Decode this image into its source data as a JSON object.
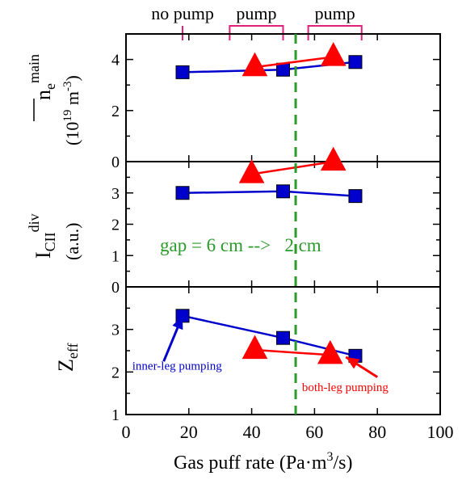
{
  "chart_data": {
    "type": "scatter",
    "xlabel": "Gas puff rate (Pa·m3/s)",
    "xlabel_main": "Gas puff rate (Pa·m",
    "xlabel_sup": "3",
    "xlabel_end": "/s)",
    "xlim": [
      0,
      100
    ],
    "xticks": [
      0,
      20,
      40,
      60,
      80,
      100
    ],
    "xtick_labels": [
      "0",
      "20",
      "40",
      "60",
      "80",
      "100"
    ],
    "gap_line_x": 54,
    "gap_annotation": "gap = 6 cm -->   2 cm",
    "pump_markers": [
      {
        "label": "no pump",
        "x_start": 18,
        "x_end": 18
      },
      {
        "label": "pump",
        "x_start": 33,
        "x_end": 50
      },
      {
        "label": "pump",
        "x_start": 58,
        "x_end": 75
      }
    ],
    "panels": [
      {
        "id": "ne",
        "ylabel_line1": "n",
        "ylabel_sub": "e",
        "ylabel_sup": "main",
        "ylabel_line2_start": "(10",
        "ylabel_line2_sup1": "19",
        "ylabel_line2_mid": " m",
        "ylabel_line2_sup2": "-3",
        "ylabel_line2_end": ")",
        "ylim": [
          0,
          5
        ],
        "yticks": [
          0,
          2,
          4
        ],
        "ytick_labels": [
          "0",
          "2",
          "4"
        ],
        "series": [
          {
            "marker": "square",
            "color": "#0000cc",
            "x": [
              18,
              50,
              73
            ],
            "y": [
              3.5,
              3.6,
              3.9
            ]
          },
          {
            "marker": "triangle",
            "color": "#ff0000",
            "x": [
              41,
              66
            ],
            "y": [
              3.7,
              4.1
            ]
          }
        ]
      },
      {
        "id": "cii",
        "ylabel_main": "I",
        "ylabel_sub": "CII",
        "ylabel_sup": "div",
        "ylabel_line2": "(a.u.)",
        "ylim": [
          0,
          4
        ],
        "yticks": [
          0,
          1,
          2,
          3
        ],
        "ytick_labels": [
          "0",
          "1",
          "2",
          "3"
        ],
        "series": [
          {
            "marker": "square",
            "color": "#0000cc",
            "x": [
              18,
              50,
              73
            ],
            "y": [
              3.0,
              3.05,
              2.9
            ]
          },
          {
            "marker": "triangle",
            "color": "#ff0000",
            "x": [
              40,
              66
            ],
            "y": [
              3.6,
              4.0
            ]
          }
        ]
      },
      {
        "id": "zeff",
        "ylabel_main": "Z",
        "ylabel_sub": "eff",
        "ylim": [
          1,
          4
        ],
        "yticks": [
          1,
          2,
          3
        ],
        "ytick_labels": [
          "1",
          "2",
          "3"
        ],
        "series": [
          {
            "marker": "square",
            "color": "#0000cc",
            "x": [
              18,
              50,
              73
            ],
            "y": [
              3.32,
              2.8,
              2.38
            ]
          },
          {
            "marker": "triangle",
            "color": "#ff0000",
            "x": [
              41,
              65
            ],
            "y": [
              2.52,
              2.4
            ]
          }
        ]
      }
    ],
    "annotations": [
      {
        "text": "inner-leg pumping",
        "color": "#0000cc",
        "arrow_to_x": 18,
        "arrow_to_y": 3.32,
        "arrow_from_x": 12,
        "arrow_from_y": 2.25,
        "text_x": 2,
        "text_y": 2.05
      },
      {
        "text": "both-leg pumping",
        "color": "#ff0000",
        "arrow_to_x": 70,
        "arrow_to_y": 2.35,
        "arrow_from_x": 80,
        "arrow_from_y": 1.88,
        "text_x": 56,
        "text_y": 1.55
      }
    ],
    "colors": {
      "square": "#0000cc",
      "triangle": "#ff0000",
      "gap_line": "#2a9a2a",
      "pump_bracket": "#e0207a",
      "axes": "#000000"
    }
  }
}
